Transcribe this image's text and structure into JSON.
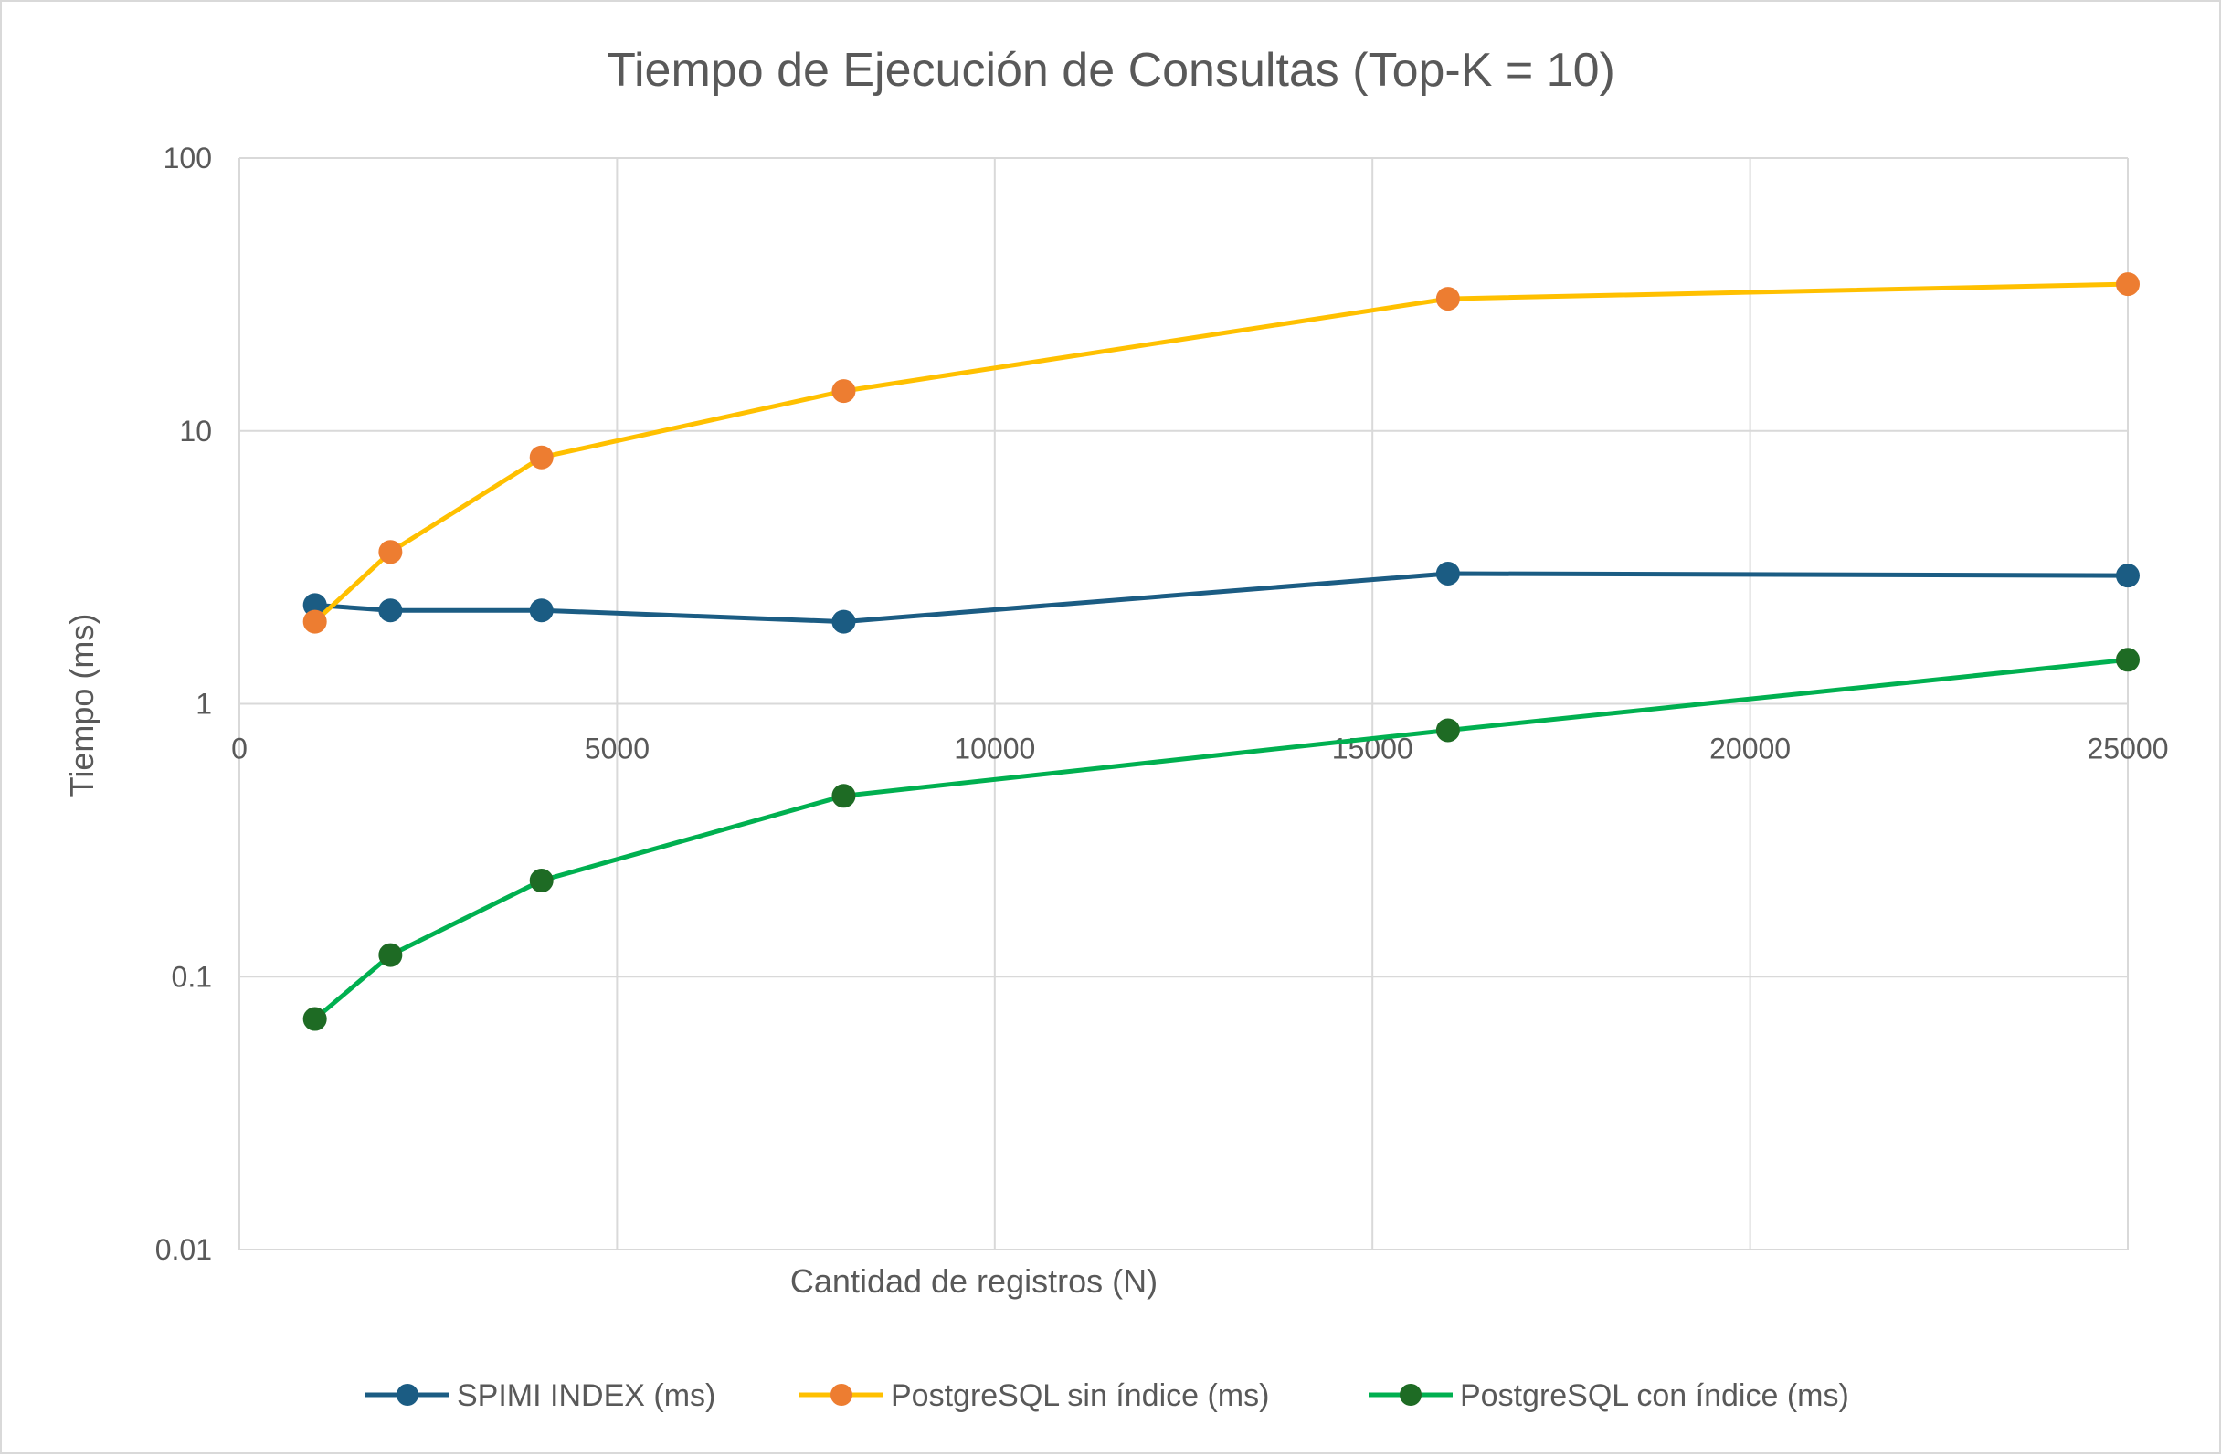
{
  "chart_data": {
    "type": "scatter",
    "title": "Tiempo de Ejecución de Consultas (Top-K = 10)",
    "xlabel": "Cantidad de registros (N)",
    "ylabel": "Tiempo (ms)",
    "xlim": [
      0,
      25000
    ],
    "ylim": [
      0.01,
      100
    ],
    "y_scale": "log",
    "grid": true,
    "legend_position": "bottom",
    "x_ticks": [
      "0",
      "5000",
      "10000",
      "15000",
      "20000",
      "25000"
    ],
    "y_ticks": [
      "0.01",
      "0.1",
      "1",
      "10",
      "100"
    ],
    "series": [
      {
        "name": "SPIMI INDEX (ms)",
        "line_color": "#1b5c83",
        "marker_color": "#1b5c83",
        "x": [
          1000,
          2000,
          4000,
          8000,
          16000,
          25000
        ],
        "y": [
          2.3,
          2.2,
          2.2,
          2.0,
          3.0,
          2.95
        ]
      },
      {
        "name": "PostgreSQL sin índice (ms)",
        "line_color": "#ffc000",
        "marker_color": "#ed7d31",
        "x": [
          1000,
          2000,
          4000,
          8000,
          16000,
          25000
        ],
        "y": [
          2.0,
          3.6,
          8.0,
          14.0,
          30.5,
          34.5
        ]
      },
      {
        "name": "PostgreSQL con índice (ms)",
        "line_color": "#00b050",
        "marker_color": "#1e6b24",
        "x": [
          1000,
          2000,
          4000,
          8000,
          16000,
          25000
        ],
        "y": [
          0.07,
          0.12,
          0.225,
          0.46,
          0.8,
          1.45
        ]
      }
    ]
  }
}
